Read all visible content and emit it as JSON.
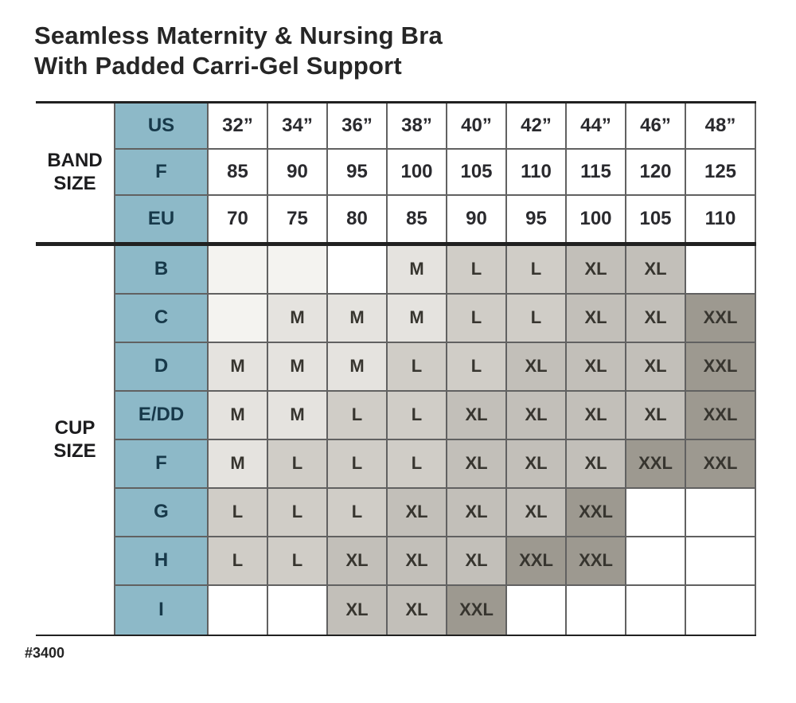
{
  "title": {
    "line1": "Seamless Maternity & Nursing Bra",
    "line2": "With Padded Carri-Gel Support"
  },
  "product_code": "#3400",
  "colors": {
    "teal": "#8db9c8",
    "teal_text": "#17394a",
    "size_m": "#e5e3df",
    "size_l": "#d0cdc7",
    "size_xl": "#c2bfb9",
    "size_xxl": "#9d9990",
    "empty_tint": "#f4f3f0",
    "grid_line": "#616161",
    "heavy_line": "#212121"
  },
  "chart_data": {
    "type": "table",
    "title": "Seamless Maternity & Nursing Bra With Padded Carri-Gel Support",
    "legend_note": "Cell shading darkens with garment size: M, L, XL, XXL; blank cells mean size not offered",
    "band_size": {
      "row_group_label": "BAND\nSIZE",
      "rows": [
        {
          "label": "US",
          "values": [
            "32”",
            "34”",
            "36”",
            "38”",
            "40”",
            "42”",
            "44”",
            "46”",
            "48”"
          ]
        },
        {
          "label": "F",
          "values": [
            "85",
            "90",
            "95",
            "100",
            "105",
            "110",
            "115",
            "120",
            "125"
          ]
        },
        {
          "label": "EU",
          "values": [
            "70",
            "75",
            "80",
            "85",
            "90",
            "95",
            "100",
            "105",
            "110"
          ]
        }
      ]
    },
    "cup_size": {
      "row_group_label": "CUP\nSIZE",
      "rows": [
        {
          "label": "B",
          "values": [
            "",
            "",
            "",
            "M",
            "L",
            "L",
            "XL",
            "XL",
            ""
          ],
          "tinted_cols": [
            0,
            1
          ]
        },
        {
          "label": "C",
          "values": [
            "",
            "M",
            "M",
            "M",
            "L",
            "L",
            "XL",
            "XL",
            "XXL"
          ],
          "tinted_cols": [
            0
          ]
        },
        {
          "label": "D",
          "values": [
            "M",
            "M",
            "M",
            "L",
            "L",
            "XL",
            "XL",
            "XL",
            "XXL"
          ],
          "tinted_cols": []
        },
        {
          "label": "E/DD",
          "values": [
            "M",
            "M",
            "L",
            "L",
            "XL",
            "XL",
            "XL",
            "XL",
            "XXL"
          ],
          "tinted_cols": []
        },
        {
          "label": "F",
          "values": [
            "M",
            "L",
            "L",
            "L",
            "XL",
            "XL",
            "XL",
            "XXL",
            "XXL"
          ],
          "tinted_cols": []
        },
        {
          "label": "G",
          "values": [
            "L",
            "L",
            "L",
            "XL",
            "XL",
            "XL",
            "XXL",
            "",
            ""
          ],
          "tinted_cols": []
        },
        {
          "label": "H",
          "values": [
            "L",
            "L",
            "XL",
            "XL",
            "XL",
            "XXL",
            "XXL",
            "",
            ""
          ],
          "tinted_cols": []
        },
        {
          "label": "I",
          "values": [
            "",
            "",
            "XL",
            "XL",
            "XXL",
            "",
            "",
            "",
            ""
          ],
          "tinted_cols": []
        }
      ]
    }
  }
}
